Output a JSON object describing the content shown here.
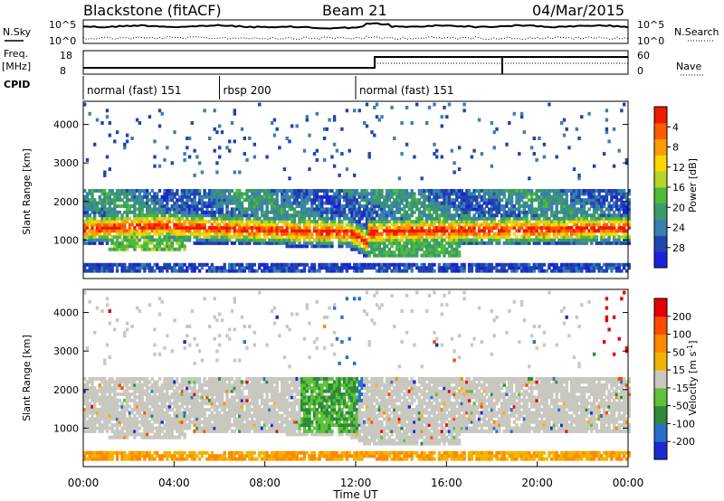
{
  "header": {
    "station": "Blackstone (fitACF)",
    "beam": "Beam 21",
    "date": "04/Mar/2015"
  },
  "left_labels": {
    "nsky": "N.Sky",
    "freq_top": "Freq.",
    "freq_unit": "[MHz]",
    "cpid": "CPID"
  },
  "right_labels": {
    "nsearch": "N.Search",
    "nave": "Nave"
  },
  "scales": {
    "noise_left_top": "10^5",
    "noise_left_bottom": "10^0",
    "noise_right_top": "10^5",
    "noise_right_bottom": "10^0",
    "freq_top": "18",
    "freq_bottom": "8",
    "nave_top": "60",
    "nave_bottom": "0"
  },
  "cpid_segments": [
    {
      "label": "normal (fast) 151",
      "start_hour": 0
    },
    {
      "label": "rbsp 200",
      "start_hour": 6
    },
    {
      "label": "normal (fast) 151",
      "start_hour": 12
    }
  ],
  "chart_data": [
    {
      "type": "heatmap",
      "panel": "power",
      "ylabel": "Slant Range [km]",
      "xlim_hours": [
        0,
        24
      ],
      "ylim_km": [
        0,
        4600
      ],
      "y_ticks": [
        "1000",
        "2000",
        "3000",
        "4000"
      ],
      "colorbar": {
        "label": "Power [dB]",
        "ticks": [
          "4",
          "8",
          "12",
          "16",
          "20",
          "24",
          "28"
        ],
        "colors": [
          "#1b22d8",
          "#2045b0",
          "#3a7fb0",
          "#3c9a6a",
          "#4cbb3a",
          "#b8d32a",
          "#ffd400",
          "#ff9c00",
          "#ff5a00",
          "#ee1b00"
        ]
      }
    },
    {
      "type": "heatmap",
      "panel": "velocity",
      "ylabel": "Slant Range [km]",
      "xlim_hours": [
        0,
        24
      ],
      "ylim_km": [
        0,
        4600
      ],
      "y_ticks": [
        "1000",
        "2000",
        "3000",
        "4000"
      ],
      "colorbar": {
        "label": "Velocity [m s",
        "label_sup": "-1",
        "label_end": "]",
        "ticks": [
          "200",
          "100",
          "50",
          "15",
          "-15",
          "-50",
          "-100",
          "-200"
        ],
        "colors": [
          "#1b2ad0",
          "#2a6fc9",
          "#2e8a3a",
          "#5fc23a",
          "#c8c8c0",
          "#f1b400",
          "#ff8a00",
          "#ff4a00",
          "#e60000"
        ]
      }
    }
  ],
  "x_ticks": [
    "00:00",
    "04:00",
    "08:00",
    "12:00",
    "16:00",
    "20:00",
    "00:00"
  ],
  "xlabel": "Time UT"
}
